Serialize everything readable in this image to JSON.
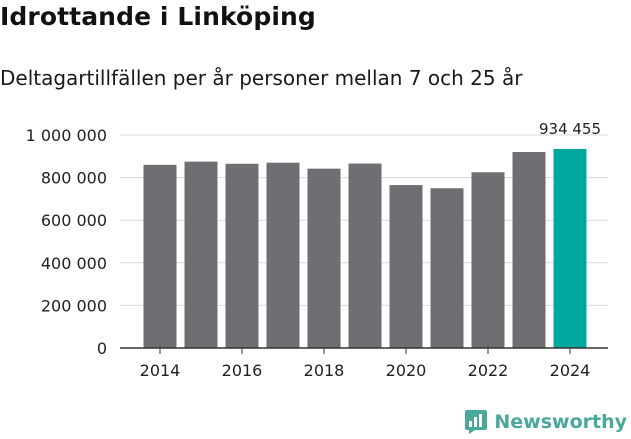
{
  "page": {
    "title": "Idrottande i Linköping",
    "subtitle": "Deltagartillfällen per år personer mellan 7 och 25 år",
    "brand": "Newsworthy"
  },
  "colors": {
    "bar": "#6f6e73",
    "highlight": "#00a79d",
    "grid": "#d9d9d9",
    "axis": "#333333",
    "brand": "#4aa89b"
  },
  "chart_data": {
    "type": "bar",
    "title": "Idrottande i Linköping",
    "subtitle": "Deltagartillfällen per år personer mellan 7 och 25 år",
    "xlabel": "",
    "ylabel": "",
    "categories": [
      "2014",
      "2015",
      "2016",
      "2017",
      "2018",
      "2019",
      "2020",
      "2021",
      "2022",
      "2023",
      "2024"
    ],
    "values": [
      860000,
      875000,
      865000,
      870000,
      842000,
      866000,
      765000,
      750000,
      825000,
      920000,
      934455
    ],
    "highlight_index": 10,
    "highlight_label": "934 455",
    "x_tick_labels": [
      "2014",
      "2016",
      "2018",
      "2020",
      "2022",
      "2024"
    ],
    "y_ticks": [
      0,
      200000,
      400000,
      600000,
      800000,
      1000000
    ],
    "y_tick_labels": [
      "0",
      "200 000",
      "400 000",
      "600 000",
      "800 000",
      "1 000 000"
    ],
    "ylim": [
      0,
      1000000
    ],
    "grid": true
  }
}
